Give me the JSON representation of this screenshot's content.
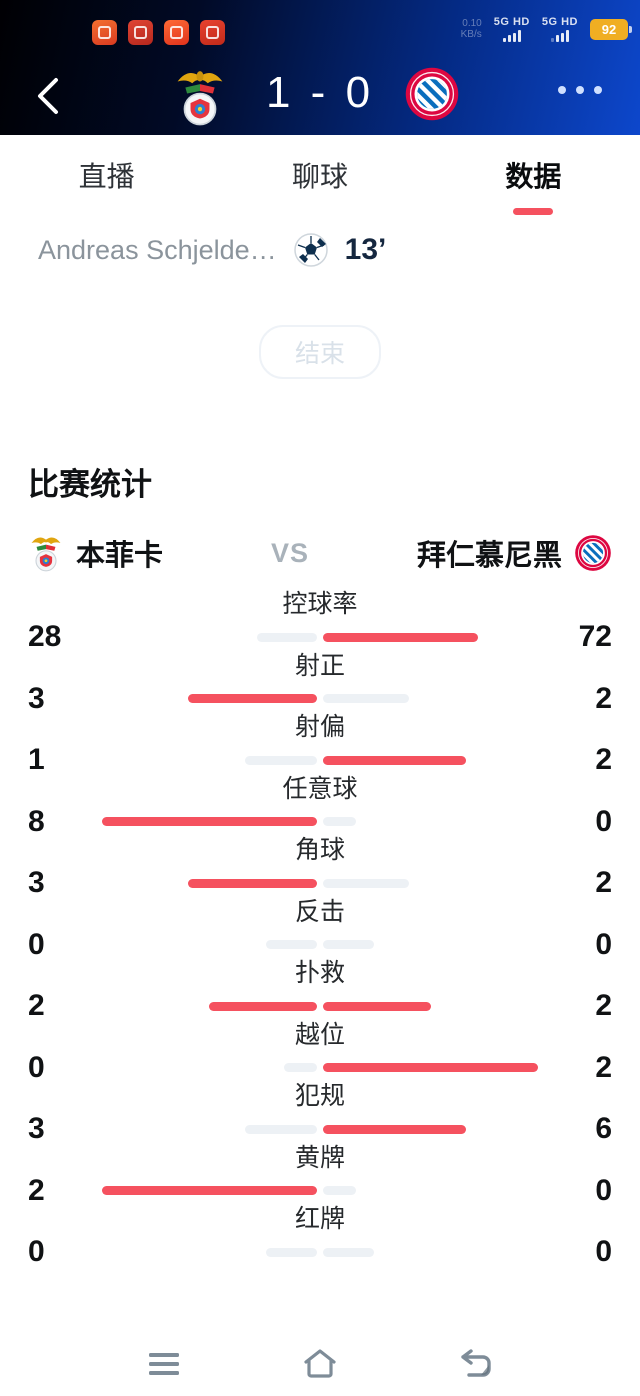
{
  "theme": {
    "accent_red": "#f5515f",
    "bar_gray": "#edf1f5",
    "battery_yellow": "#f0ae22",
    "nav_icon_gray": "#7e8c98"
  },
  "status_bar": {
    "net_speed_value": "0.10",
    "net_speed_unit": "KB/s",
    "sim1_label": "5G HD",
    "sim2_label": "5G HD",
    "battery_percent": "92",
    "app_icons": [
      {
        "name": "shopping-app-icon",
        "from": "#f3702f",
        "to": "#d93a21"
      },
      {
        "name": "toutiao-app-icon",
        "from": "#e04534",
        "to": "#b5271d"
      },
      {
        "name": "kuaishou-app-icon",
        "from": "#ff6a35",
        "to": "#e0321c"
      },
      {
        "name": "news-lite-app-icon",
        "from": "#e8422f",
        "to": "#c02a1a"
      }
    ]
  },
  "header": {
    "home_score": "1",
    "score_separator": "-",
    "away_score": "0",
    "home_logo": "benfica-crest",
    "away_logo": "bayern-munich-crest"
  },
  "tabs": [
    {
      "label": "直播"
    },
    {
      "label": "聊球"
    },
    {
      "label": "数据"
    }
  ],
  "event": {
    "scorer_name": "Andreas Schjelde…",
    "minute": "13’"
  },
  "match_status": {
    "label": "结束"
  },
  "stats": {
    "title": "比赛统计",
    "home_team": "本菲卡",
    "away_team": "拜仁慕尼黑",
    "vs_label": "VS",
    "rows": [
      {
        "label": "控球率",
        "home": 28,
        "away": 72
      },
      {
        "label": "射正",
        "home": 3,
        "away": 2
      },
      {
        "label": "射偏",
        "home": 1,
        "away": 2
      },
      {
        "label": "任意球",
        "home": 8,
        "away": 0
      },
      {
        "label": "角球",
        "home": 3,
        "away": 2
      },
      {
        "label": "反击",
        "home": 0,
        "away": 0
      },
      {
        "label": "扑救",
        "home": 2,
        "away": 2
      },
      {
        "label": "越位",
        "home": 0,
        "away": 2
      },
      {
        "label": "犯规",
        "home": 3,
        "away": 6
      },
      {
        "label": "黄牌",
        "home": 2,
        "away": 0
      },
      {
        "label": "红牌",
        "home": 0,
        "away": 0
      }
    ]
  },
  "bottom_nav": [
    {
      "name": "recents-button",
      "icon": "menu-icon"
    },
    {
      "name": "home-button",
      "icon": "home-icon"
    },
    {
      "name": "back-button",
      "icon": "back-arrow-icon"
    }
  ]
}
